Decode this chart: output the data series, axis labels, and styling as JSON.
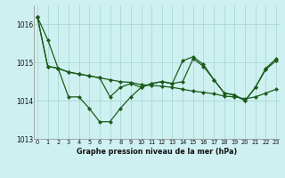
{
  "title": "Graphe pression niveau de la mer (hPa)",
  "bg_color": "#cff0f0",
  "line_color": "#1a5c1a",
  "grid_color": "#aad8d8",
  "hours": [
    0,
    1,
    2,
    3,
    4,
    5,
    6,
    7,
    8,
    9,
    10,
    11,
    12,
    13,
    14,
    15,
    16,
    17,
    18,
    19,
    20,
    21,
    22,
    23
  ],
  "series1": [
    1016.2,
    1015.6,
    1014.85,
    1014.1,
    1014.1,
    1013.8,
    1013.45,
    1013.45,
    1013.8,
    1014.1,
    1014.35,
    1014.45,
    1014.5,
    1014.45,
    1015.05,
    1015.15,
    1014.95,
    1014.55,
    1014.2,
    1014.15,
    1014.0,
    1014.35,
    1014.85,
    1015.1
  ],
  "series2": [
    1016.2,
    1014.9,
    1014.85,
    1014.75,
    1014.7,
    1014.65,
    1014.6,
    1014.55,
    1014.5,
    1014.48,
    1014.42,
    1014.4,
    1014.38,
    1014.35,
    1014.3,
    1014.25,
    1014.22,
    1014.18,
    1014.12,
    1014.1,
    1014.05,
    1014.1,
    1014.2,
    1014.3
  ],
  "series3": [
    1016.2,
    1014.9,
    1014.85,
    1014.75,
    1014.7,
    1014.65,
    1014.6,
    1014.1,
    1014.35,
    1014.45,
    1014.35,
    1014.45,
    1014.5,
    1014.45,
    1014.5,
    1015.1,
    1014.9,
    1014.55,
    1014.2,
    1014.15,
    1014.0,
    1014.35,
    1014.82,
    1015.05
  ],
  "ylim": [
    1013.0,
    1016.5
  ],
  "yticks": [
    1013,
    1014,
    1015,
    1016
  ],
  "xlim": [
    -0.3,
    23.3
  ],
  "figsize": [
    3.2,
    2.0
  ],
  "dpi": 100
}
